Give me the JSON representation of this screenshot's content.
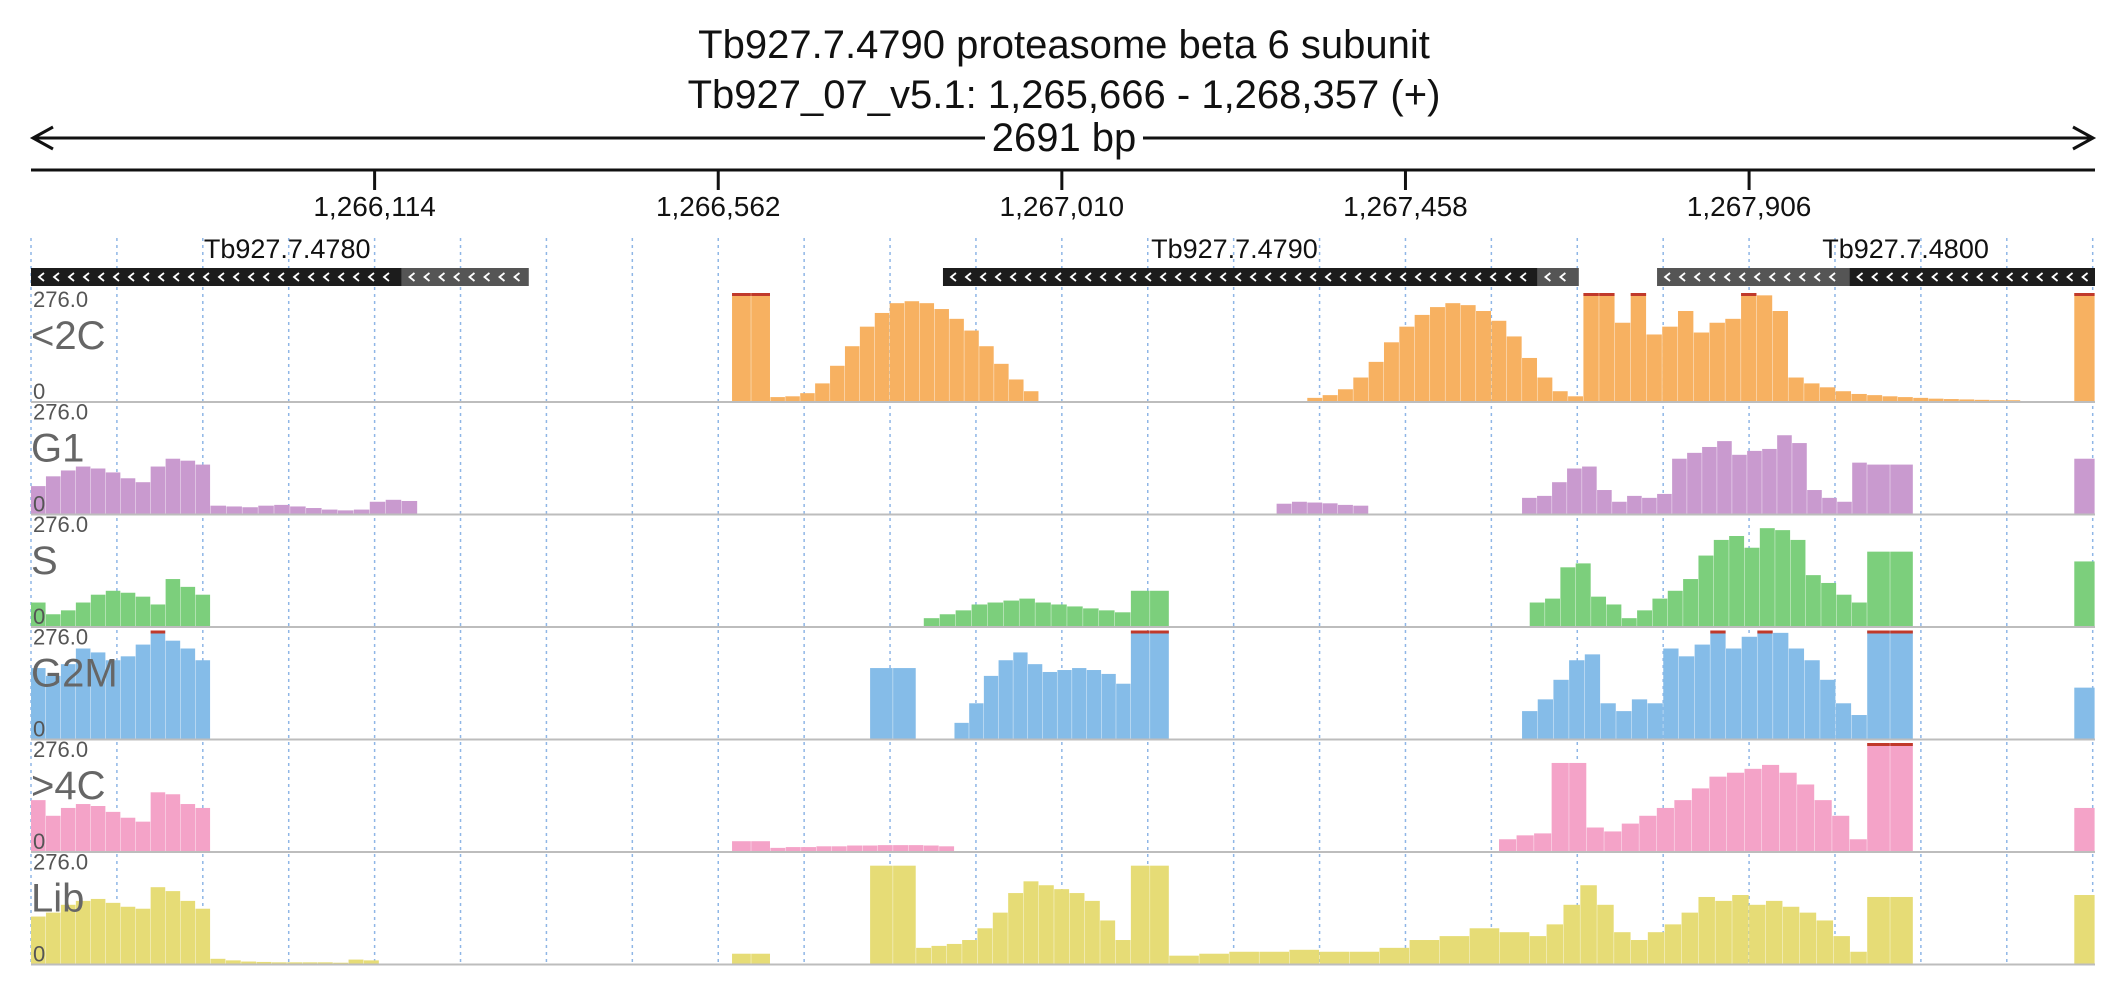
{
  "header": {
    "title_line1": "Tb927.7.4790  proteasome beta 6 subunit",
    "title_line2": "Tb927_07_v5.1: 1,265,666 - 1,268,357 (+)",
    "span_label": "2691 bp"
  },
  "colors": {
    "ruler": "#111111",
    "gridline": "#8fb6e6",
    "gene_cds": "#1c1c1c",
    "gene_utr": "#555555",
    "clip_marker": "#c0392b",
    "track_border": "#bdbdbd"
  },
  "chart_data": {
    "type": "bar",
    "chromosome": "Tb927_07_v5.1",
    "region": {
      "start": 1265666,
      "end": 1268357,
      "strand": "+"
    },
    "ruler_ticks": [
      {
        "position": 1266114,
        "label": "1,266,114"
      },
      {
        "position": 1266562,
        "label": "1,266,562"
      },
      {
        "position": 1267010,
        "label": "1,267,010"
      },
      {
        "position": 1267458,
        "label": "1,267,458"
      },
      {
        "position": 1267906,
        "label": "1,267,906"
      }
    ],
    "genes": [
      {
        "name": "Tb927.7.4780",
        "strand": "-",
        "cds": [
          1265666,
          1266149
        ],
        "utr": [
          1266149,
          1266315
        ],
        "label_pos": 1266000
      },
      {
        "name": "Tb927.7.4790",
        "strand": "-",
        "cds": [
          1266855,
          1267630
        ],
        "utr": [
          1267630,
          1267684
        ],
        "label_pos": 1267235
      },
      {
        "name": "Tb927.7.4800",
        "strand": "-",
        "cds": [
          1268037,
          1268357
        ],
        "utr": [
          1267786,
          1268037
        ],
        "label_pos": 1268110
      }
    ],
    "y_range": [
      0,
      276.0
    ],
    "scale_max_label": "276.0",
    "scale_min_label": "0",
    "bin_bp": 20,
    "tracks": [
      {
        "name": "<2C",
        "color": "#f7b161",
        "segments": [
          {
            "start": 1266580,
            "end": 1266630,
            "values": [
              276,
              276
            ]
          },
          {
            "start": 1266630,
            "end": 1266980,
            "values": [
              10,
              12,
              20,
              45,
              90,
              140,
              190,
              225,
              250,
              255,
              250,
              235,
              210,
              180,
              140,
              95,
              55,
              25
            ]
          },
          {
            "start": 1267330,
            "end": 1267690,
            "values": [
              8,
              15,
              30,
              60,
              100,
              150,
              190,
              220,
              240,
              250,
              245,
              230,
              205,
              165,
              110,
              60,
              25,
              12
            ]
          },
          {
            "start": 1267690,
            "end": 1268060,
            "values": [
              276,
              276,
              200,
              276,
              170,
              190,
              230,
              175,
              200,
              210,
              276,
              270,
              230,
              60,
              45,
              35,
              25,
              18
            ]
          },
          {
            "start": 1268060,
            "end": 1268260,
            "values": [
              15,
              12,
              10,
              8,
              6,
              5,
              4,
              3,
              2,
              2
            ]
          },
          {
            "start": 1268330,
            "end": 1268357,
            "values": [
              276
            ]
          }
        ]
      },
      {
        "name": "G1",
        "color": "#c99acf",
        "segments": [
          {
            "start": 1265666,
            "end": 1265900,
            "values": [
              70,
              95,
              110,
              120,
              115,
              105,
              90,
              80,
              120,
              140,
              135,
              125
            ]
          },
          {
            "start": 1265900,
            "end": 1266170,
            "values": [
              20,
              18,
              16,
              20,
              22,
              18,
              14,
              10,
              8,
              10,
              30,
              35,
              32
            ]
          },
          {
            "start": 1267290,
            "end": 1267410,
            "values": [
              25,
              30,
              28,
              26,
              22,
              20
            ]
          },
          {
            "start": 1267610,
            "end": 1268060,
            "values": [
              40,
              45,
              80,
              115,
              120,
              60,
              30,
              45,
              40,
              50,
              140,
              155,
              170,
              185,
              150,
              160,
              165,
              200,
              180,
              60,
              40,
              30,
              130
            ]
          },
          {
            "start": 1268060,
            "end": 1268120,
            "values": [
              125,
              125
            ]
          },
          {
            "start": 1268330,
            "end": 1268357,
            "values": [
              140
            ]
          }
        ]
      },
      {
        "name": "S",
        "color": "#7ccf7c",
        "segments": [
          {
            "start": 1265666,
            "end": 1265900,
            "values": [
              60,
              30,
              40,
              60,
              80,
              90,
              85,
              75,
              55,
              120,
              100,
              80
            ]
          },
          {
            "start": 1266830,
            "end": 1267100,
            "values": [
              20,
              30,
              40,
              55,
              60,
              65,
              70,
              60,
              55,
              50,
              45,
              40,
              35
            ]
          },
          {
            "start": 1267100,
            "end": 1267150,
            "values": [
              90,
              90
            ]
          },
          {
            "start": 1267620,
            "end": 1268060,
            "values": [
              60,
              70,
              150,
              160,
              75,
              55,
              20,
              40,
              70,
              90,
              120,
              180,
              220,
              230,
              200,
              250,
              245,
              220,
              130,
              110,
              80,
              60
            ]
          },
          {
            "start": 1268060,
            "end": 1268120,
            "values": [
              190,
              190
            ]
          },
          {
            "start": 1268330,
            "end": 1268357,
            "values": [
              165
            ]
          }
        ]
      },
      {
        "name": "G2M",
        "color": "#85bce8",
        "segments": [
          {
            "start": 1265666,
            "end": 1265900,
            "values": [
              180,
              160,
              190,
              230,
              220,
              200,
              210,
              240,
              276,
              250,
              230,
              200
            ]
          },
          {
            "start": 1266760,
            "end": 1266820,
            "values": [
              180,
              180
            ]
          },
          {
            "start": 1266870,
            "end": 1267100,
            "values": [
              40,
              90,
              160,
              200,
              220,
              190,
              170,
              175,
              180,
              175,
              165,
              140
            ]
          },
          {
            "start": 1267100,
            "end": 1267150,
            "values": [
              276,
              276
            ]
          },
          {
            "start": 1267610,
            "end": 1268060,
            "values": [
              70,
              100,
              150,
              200,
              215,
              90,
              70,
              100,
              90,
              230,
              210,
              240,
              276,
              230,
              260,
              276,
              270,
              230,
              200,
              150,
              90,
              60
            ]
          },
          {
            "start": 1268060,
            "end": 1268120,
            "values": [
              276,
              276
            ]
          },
          {
            "start": 1268330,
            "end": 1268357,
            "values": [
              130
            ]
          }
        ]
      },
      {
        "name": ">4C",
        "color": "#f4a3c8",
        "segments": [
          {
            "start": 1265666,
            "end": 1265900,
            "values": [
              130,
              90,
              110,
              120,
              115,
              100,
              85,
              75,
              150,
              145,
              120,
              110
            ]
          },
          {
            "start": 1266580,
            "end": 1266630,
            "values": [
              25,
              25
            ]
          },
          {
            "start": 1266630,
            "end": 1266870,
            "values": [
              8,
              10,
              10,
              12,
              12,
              14,
              14,
              15,
              15,
              15,
              14,
              12
            ]
          },
          {
            "start": 1267580,
            "end": 1268060,
            "values": [
              30,
              40,
              45,
              225,
              225,
              60,
              50,
              70,
              90,
              110,
              130,
              160,
              190,
              200,
              210,
              220,
              200,
              170,
              130,
              90,
              30
            ]
          },
          {
            "start": 1268060,
            "end": 1268120,
            "values": [
              276,
              276
            ]
          },
          {
            "start": 1268330,
            "end": 1268357,
            "values": [
              110
            ]
          }
        ]
      },
      {
        "name": "Lib",
        "color": "#e6dc76",
        "segments": [
          {
            "start": 1265666,
            "end": 1265900,
            "values": [
              120,
              130,
              150,
              160,
              165,
              155,
              145,
              140,
              195,
              185,
              160,
              140
            ]
          },
          {
            "start": 1265900,
            "end": 1266120,
            "values": [
              12,
              8,
              5,
              4,
              3,
              3,
              3,
              3,
              2,
              10,
              8
            ]
          },
          {
            "start": 1266580,
            "end": 1266630,
            "values": [
              25,
              25
            ]
          },
          {
            "start": 1266760,
            "end": 1266820,
            "values": [
              250,
              250
            ]
          },
          {
            "start": 1266820,
            "end": 1267100,
            "values": [
              40,
              45,
              50,
              60,
              90,
              130,
              180,
              210,
              200,
              190,
              180,
              160,
              110,
              60
            ]
          },
          {
            "start": 1267100,
            "end": 1267150,
            "values": [
              250,
              250
            ]
          },
          {
            "start": 1267150,
            "end": 1267620,
            "values": [
              20,
              25,
              30,
              30,
              35,
              30,
              30,
              40,
              60,
              70,
              90,
              80
            ]
          },
          {
            "start": 1267620,
            "end": 1268060,
            "values": [
              70,
              100,
              150,
              200,
              150,
              80,
              60,
              80,
              100,
              130,
              170,
              160,
              175,
              150,
              160,
              145,
              130,
              110,
              70,
              30
            ]
          },
          {
            "start": 1268060,
            "end": 1268120,
            "values": [
              170,
              170
            ]
          },
          {
            "start": 1268330,
            "end": 1268357,
            "values": [
              175
            ]
          }
        ]
      }
    ]
  }
}
